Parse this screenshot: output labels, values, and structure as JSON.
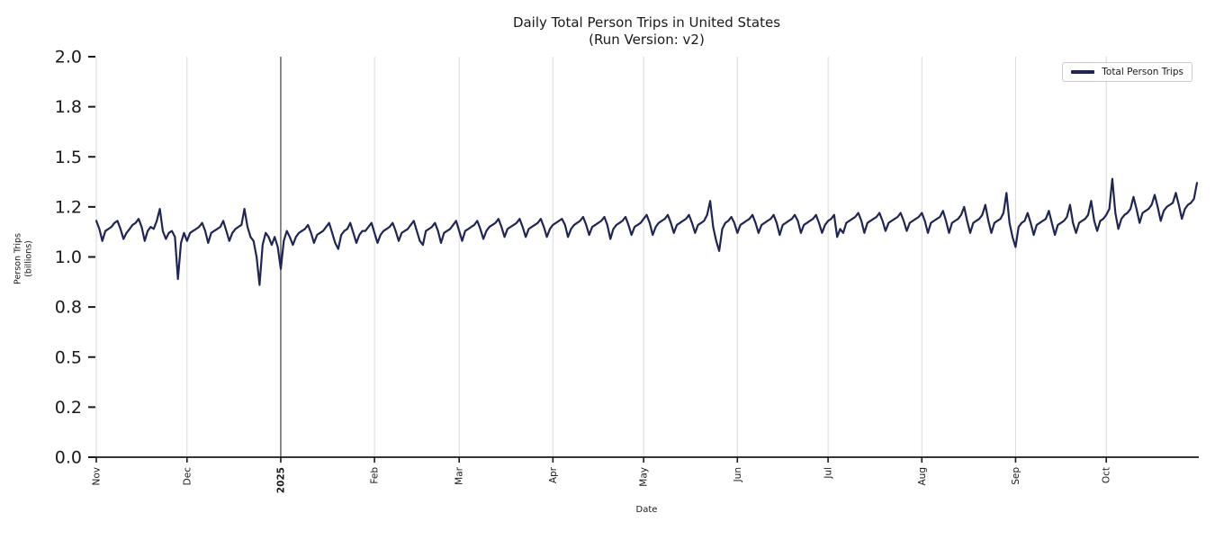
{
  "title": {
    "line1": "Daily Total Person Trips in United States",
    "line2": "(Run Version: v2)"
  },
  "axes": {
    "xlabel": "Date",
    "ylabel_line1": "Person Trips",
    "ylabel_line2": "(billions)"
  },
  "legend": {
    "label": "Total Person Trips",
    "position": "upper right"
  },
  "colors": {
    "line": "#1f2554",
    "grid": "#d9d9d9",
    "year_line": "#3f3f3f",
    "axis": "#1a1a1a",
    "text": "#1a1a1a",
    "legend_border": "#cccccc",
    "background": "#ffffff"
  },
  "chart_data": {
    "type": "line",
    "title": "Daily Total Person Trips in United States (Run Version: v2)",
    "xlabel": "Date",
    "ylabel": "Person Trips (billions)",
    "ylim": [
      0.0,
      2.0
    ],
    "grid": "vertical-only",
    "legend_position": "upper right",
    "y_ticks": [
      {
        "label": "0.0",
        "value": 0.0
      },
      {
        "label": "0.2",
        "value": 0.25
      },
      {
        "label": "0.5",
        "value": 0.5
      },
      {
        "label": "0.8",
        "value": 0.75
      },
      {
        "label": "1.0",
        "value": 1.0
      },
      {
        "label": "1.2",
        "value": 1.25
      },
      {
        "label": "1.5",
        "value": 1.5
      },
      {
        "label": "1.8",
        "value": 1.75
      },
      {
        "label": "2.0",
        "value": 2.0
      }
    ],
    "x_ticks": [
      {
        "label": "Nov",
        "day": 0,
        "bold": false
      },
      {
        "label": "Dec",
        "day": 30,
        "bold": false
      },
      {
        "label": "2025",
        "day": 61,
        "bold": true
      },
      {
        "label": "Feb",
        "day": 92,
        "bold": false
      },
      {
        "label": "Mar",
        "day": 120,
        "bold": false
      },
      {
        "label": "Apr",
        "day": 151,
        "bold": false
      },
      {
        "label": "May",
        "day": 181,
        "bold": false
      },
      {
        "label": "Jun",
        "day": 212,
        "bold": false
      },
      {
        "label": "Jul",
        "day": 242,
        "bold": false
      },
      {
        "label": "Aug",
        "day": 273,
        "bold": false
      },
      {
        "label": "Sep",
        "day": 304,
        "bold": false
      },
      {
        "label": "Oct",
        "day": 334,
        "bold": false
      }
    ],
    "annotations": [
      {
        "type": "vline",
        "day": 61,
        "note": "year boundary at 2025 tick"
      }
    ],
    "series": [
      {
        "name": "Total Person Trips",
        "unit": "billions of person trips",
        "start_date": "2024-11-01",
        "end_date": "2025-10-31",
        "frequency": "daily",
        "notable_points": [
          {
            "date": "2024-11-28",
            "value": 0.89,
            "note": "Thanksgiving dip"
          },
          {
            "date": "2024-12-25",
            "value": 0.86,
            "note": "Christmas dip (minimum)"
          },
          {
            "date": "2025-01-01",
            "value": 0.94,
            "note": "New Year dip"
          },
          {
            "date": "2025-05-26",
            "value": 1.03,
            "note": "Memorial Day dip"
          },
          {
            "date": "2025-09-01",
            "value": 1.05,
            "note": "Labor Day dip"
          },
          {
            "date": "2025-10-03",
            "value": 1.39,
            "note": "early October spike"
          },
          {
            "date": "2025-10-31",
            "value": 1.37,
            "note": "final point"
          }
        ],
        "values": [
          1.18,
          1.14,
          1.08,
          1.13,
          1.14,
          1.15,
          1.17,
          1.18,
          1.14,
          1.09,
          1.12,
          1.14,
          1.16,
          1.17,
          1.19,
          1.15,
          1.08,
          1.13,
          1.15,
          1.14,
          1.18,
          1.24,
          1.13,
          1.09,
          1.12,
          1.13,
          1.1,
          0.89,
          1.07,
          1.12,
          1.08,
          1.12,
          1.13,
          1.14,
          1.15,
          1.17,
          1.13,
          1.07,
          1.12,
          1.13,
          1.14,
          1.15,
          1.18,
          1.13,
          1.08,
          1.12,
          1.14,
          1.15,
          1.16,
          1.24,
          1.15,
          1.1,
          1.08,
          1.0,
          0.86,
          1.06,
          1.12,
          1.1,
          1.06,
          1.1,
          1.05,
          0.94,
          1.08,
          1.13,
          1.1,
          1.06,
          1.1,
          1.12,
          1.13,
          1.14,
          1.16,
          1.12,
          1.07,
          1.11,
          1.12,
          1.13,
          1.15,
          1.17,
          1.12,
          1.07,
          1.04,
          1.11,
          1.13,
          1.14,
          1.17,
          1.12,
          1.07,
          1.11,
          1.13,
          1.13,
          1.15,
          1.17,
          1.12,
          1.07,
          1.11,
          1.13,
          1.14,
          1.15,
          1.17,
          1.13,
          1.08,
          1.12,
          1.13,
          1.14,
          1.16,
          1.18,
          1.13,
          1.08,
          1.06,
          1.13,
          1.14,
          1.15,
          1.17,
          1.13,
          1.07,
          1.12,
          1.13,
          1.14,
          1.16,
          1.18,
          1.13,
          1.08,
          1.13,
          1.14,
          1.15,
          1.16,
          1.18,
          1.14,
          1.09,
          1.13,
          1.15,
          1.16,
          1.17,
          1.19,
          1.15,
          1.1,
          1.14,
          1.15,
          1.16,
          1.17,
          1.19,
          1.15,
          1.1,
          1.14,
          1.15,
          1.16,
          1.17,
          1.19,
          1.15,
          1.1,
          1.14,
          1.16,
          1.17,
          1.18,
          1.19,
          1.16,
          1.1,
          1.14,
          1.16,
          1.17,
          1.18,
          1.2,
          1.16,
          1.11,
          1.15,
          1.16,
          1.17,
          1.18,
          1.2,
          1.16,
          1.09,
          1.14,
          1.16,
          1.17,
          1.18,
          1.2,
          1.16,
          1.11,
          1.15,
          1.16,
          1.17,
          1.19,
          1.21,
          1.17,
          1.11,
          1.15,
          1.17,
          1.18,
          1.19,
          1.21,
          1.17,
          1.12,
          1.16,
          1.17,
          1.18,
          1.19,
          1.21,
          1.17,
          1.12,
          1.16,
          1.17,
          1.18,
          1.21,
          1.28,
          1.15,
          1.08,
          1.03,
          1.14,
          1.17,
          1.18,
          1.2,
          1.17,
          1.12,
          1.16,
          1.17,
          1.18,
          1.19,
          1.21,
          1.17,
          1.12,
          1.16,
          1.17,
          1.18,
          1.19,
          1.21,
          1.17,
          1.11,
          1.16,
          1.17,
          1.18,
          1.19,
          1.21,
          1.18,
          1.12,
          1.16,
          1.17,
          1.18,
          1.19,
          1.21,
          1.17,
          1.12,
          1.16,
          1.18,
          1.19,
          1.21,
          1.1,
          1.14,
          1.12,
          1.17,
          1.18,
          1.19,
          1.2,
          1.22,
          1.18,
          1.12,
          1.17,
          1.18,
          1.19,
          1.2,
          1.22,
          1.18,
          1.13,
          1.17,
          1.18,
          1.19,
          1.2,
          1.22,
          1.18,
          1.13,
          1.17,
          1.18,
          1.19,
          1.2,
          1.22,
          1.18,
          1.12,
          1.17,
          1.18,
          1.19,
          1.2,
          1.23,
          1.18,
          1.12,
          1.17,
          1.18,
          1.19,
          1.21,
          1.25,
          1.18,
          1.12,
          1.17,
          1.18,
          1.19,
          1.21,
          1.26,
          1.18,
          1.12,
          1.17,
          1.18,
          1.19,
          1.22,
          1.32,
          1.17,
          1.1,
          1.05,
          1.15,
          1.17,
          1.18,
          1.22,
          1.17,
          1.11,
          1.16,
          1.17,
          1.18,
          1.19,
          1.23,
          1.17,
          1.11,
          1.16,
          1.17,
          1.18,
          1.2,
          1.26,
          1.17,
          1.12,
          1.17,
          1.18,
          1.19,
          1.21,
          1.28,
          1.18,
          1.13,
          1.18,
          1.19,
          1.21,
          1.24,
          1.39,
          1.22,
          1.14,
          1.19,
          1.21,
          1.22,
          1.24,
          1.3,
          1.24,
          1.17,
          1.22,
          1.23,
          1.24,
          1.26,
          1.31,
          1.25,
          1.18,
          1.23,
          1.25,
          1.26,
          1.27,
          1.32,
          1.26,
          1.19,
          1.24,
          1.26,
          1.27,
          1.29,
          1.37
        ]
      }
    ]
  }
}
